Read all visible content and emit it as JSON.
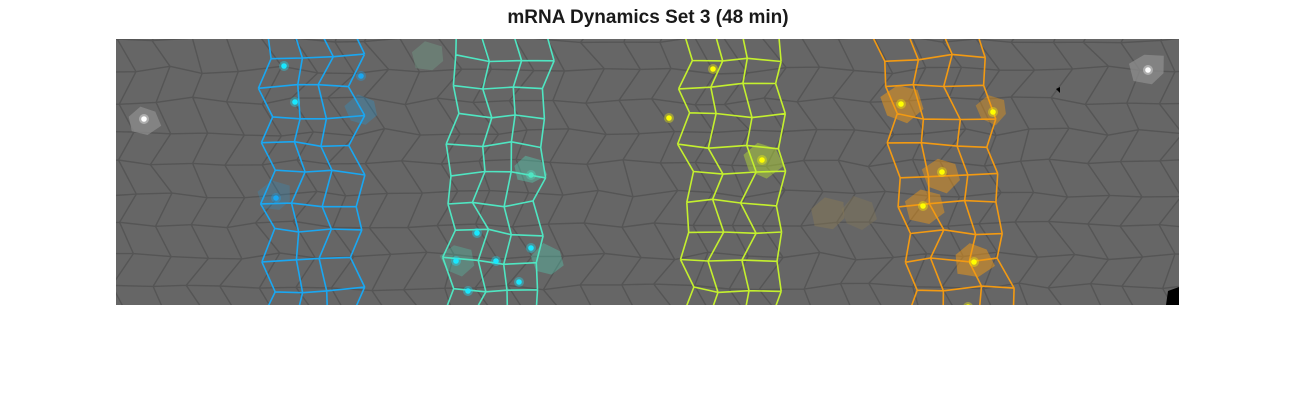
{
  "figure": {
    "title": "mRNA Dynamics Set 3 (48 min)"
  },
  "colors": {
    "background": "#ffffff",
    "tissue": "#666666",
    "membrane": "#555555",
    "blue_stripe": "#19a7f2",
    "teal_stripe": "#4fe6c2",
    "yellow_green_stripe": "#c4f02e",
    "orange_stripe": "#f39a12",
    "spot_cyan": "#19e8ff",
    "spot_yellow": "#ffff00",
    "spot_white": "#ffffff",
    "highlight_gray": "#8e8e8e"
  },
  "panel": {
    "description_tag": "segmented-embryo-cell-image",
    "stripe_count": 4
  }
}
